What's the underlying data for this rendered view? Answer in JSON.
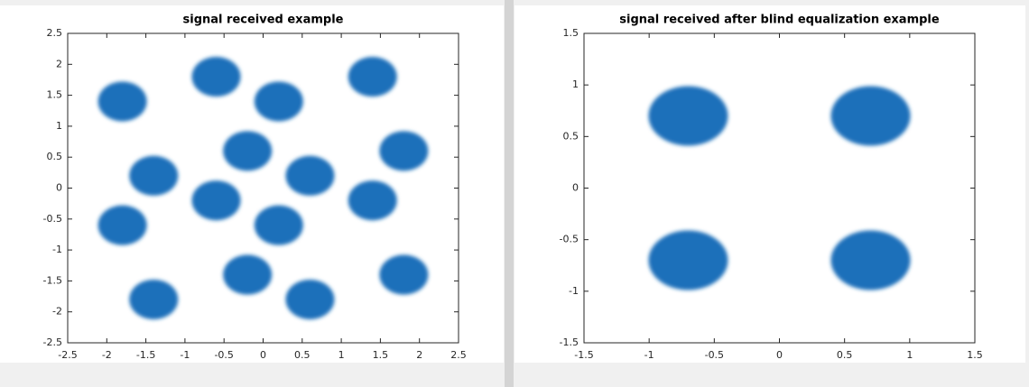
{
  "chart_data": [
    {
      "type": "scatter",
      "title": "signal received example",
      "color": "#1f6fba",
      "x": [
        -1.8,
        -0.6,
        0.2,
        1.4,
        -1.4,
        -0.2,
        0.6,
        1.8,
        -1.8,
        -0.6,
        0.2,
        1.4,
        -1.4,
        -0.2,
        0.6,
        1.8
      ],
      "y": [
        1.4,
        1.8,
        1.4,
        1.8,
        0.2,
        0.6,
        0.2,
        0.6,
        -0.6,
        -0.2,
        -0.6,
        -0.2,
        -1.8,
        -1.4,
        -1.8,
        -1.4
      ],
      "xlim": [
        -2.5,
        2.5
      ],
      "ylim": [
        -2.5,
        2.5
      ],
      "xticks": [
        -2.5,
        -2,
        -1.5,
        -1,
        -0.5,
        0,
        0.5,
        1,
        1.5,
        2,
        2.5
      ],
      "yticks": [
        -2.5,
        -2,
        -1.5,
        -1,
        -0.5,
        0,
        0.5,
        1,
        1.5,
        2,
        2.5
      ]
    },
    {
      "type": "scatter",
      "title": "signal received after blind equalization example",
      "color": "#1f6fba",
      "x": [
        -0.7,
        0.7,
        -0.7,
        0.7
      ],
      "y": [
        0.7,
        0.7,
        -0.7,
        -0.7
      ],
      "xlim": [
        -1.5,
        1.5
      ],
      "ylim": [
        -1.5,
        1.5
      ],
      "xticks": [
        -1.5,
        -1,
        -0.5,
        0,
        0.5,
        1,
        1.5
      ],
      "yticks": [
        -1.5,
        -1,
        -0.5,
        0,
        0.5,
        1,
        1.5
      ]
    }
  ]
}
